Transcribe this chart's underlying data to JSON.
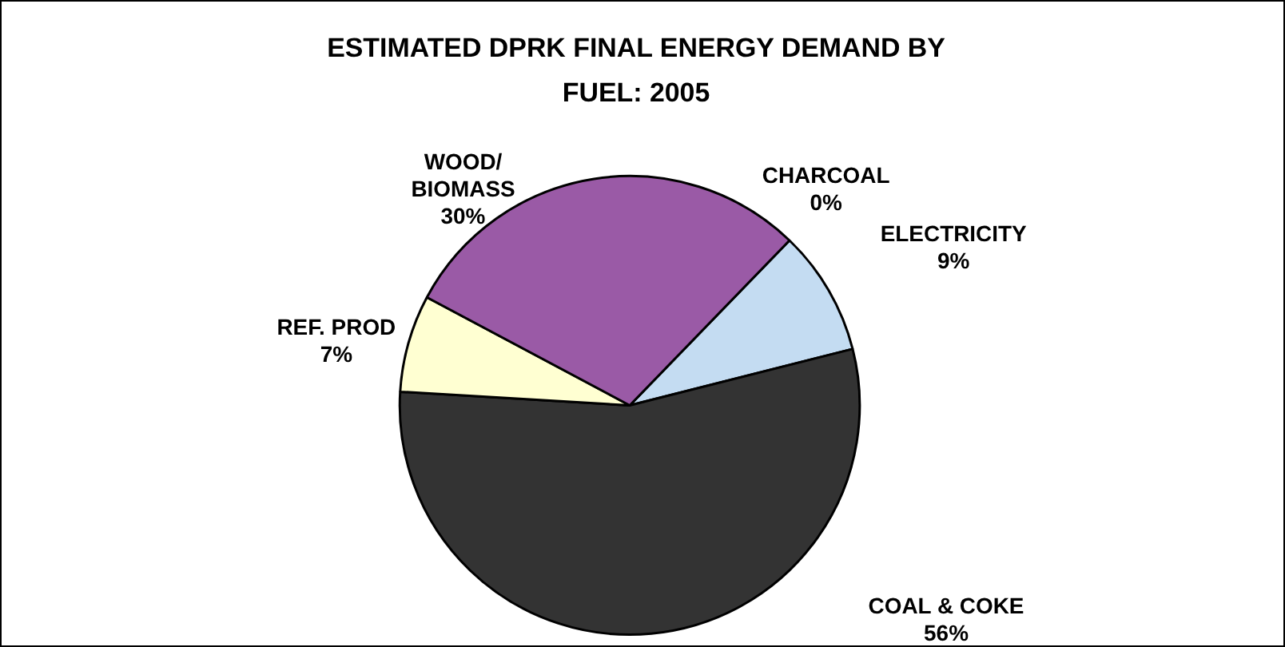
{
  "chart_data": {
    "type": "pie",
    "title": "ESTIMATED DPRK FINAL ENERGY DEMAND BY FUEL: 2005",
    "categories": [
      "CHARCOAL",
      "ELECTRICITY",
      "COAL & COKE",
      "REF. PROD",
      "WOOD/\nBIOMASS"
    ],
    "values": [
      0,
      9,
      56,
      7,
      30
    ],
    "value_labels": [
      "0%",
      "9%",
      "56%",
      "7%",
      "30%"
    ],
    "colors": [
      "#000000",
      "#c4dcf2",
      "#333333",
      "#ffffd2",
      "#9a5aa6"
    ],
    "legend": false
  }
}
